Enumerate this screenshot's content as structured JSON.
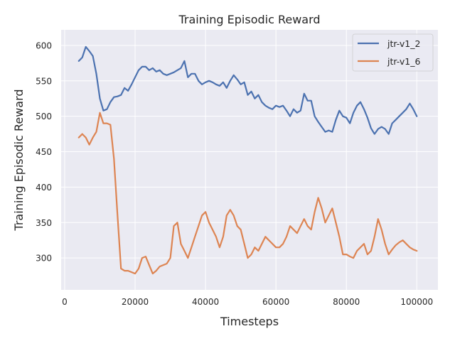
{
  "chart_data": {
    "type": "line",
    "title": "Training Episodic Reward",
    "xlabel": "Timesteps",
    "ylabel": "Training Episodic Reward",
    "xlim": [
      -1000,
      106000
    ],
    "ylim": [
      255,
      622
    ],
    "xticks": [
      0,
      20000,
      40000,
      60000,
      80000,
      100000
    ],
    "xtick_labels": [
      "0",
      "20000",
      "40000",
      "60000",
      "80000",
      "100000"
    ],
    "yticks": [
      300,
      350,
      400,
      450,
      500,
      550,
      600
    ],
    "ytick_labels": [
      "300",
      "350",
      "400",
      "450",
      "500",
      "550",
      "600"
    ],
    "grid": true,
    "legend_position": "top-right",
    "background": "#eaeaf2",
    "series": [
      {
        "name": "jtr-v1_2",
        "color": "#4c72b0",
        "x": [
          4000,
          5000,
          6000,
          7000,
          8000,
          9000,
          10000,
          11000,
          12000,
          13000,
          14000,
          15000,
          16000,
          17000,
          18000,
          19000,
          20000,
          21000,
          22000,
          23000,
          24000,
          25000,
          26000,
          27000,
          28000,
          29000,
          30000,
          31000,
          32000,
          33000,
          34000,
          35000,
          36000,
          37000,
          38000,
          39000,
          40000,
          41000,
          42000,
          43000,
          44000,
          45000,
          46000,
          47000,
          48000,
          49000,
          50000,
          51000,
          52000,
          53000,
          54000,
          55000,
          56000,
          57000,
          58000,
          59000,
          60000,
          61000,
          62000,
          63000,
          64000,
          65000,
          66000,
          67000,
          68000,
          69000,
          70000,
          71000,
          72000,
          73000,
          74000,
          75000,
          76000,
          77000,
          78000,
          79000,
          80000,
          81000,
          82000,
          83000,
          84000,
          85000,
          86000,
          87000,
          88000,
          89000,
          90000,
          91000,
          92000,
          93000,
          94000,
          95000,
          96000,
          97000,
          98000,
          99000,
          100000
        ],
        "y": [
          578,
          583,
          598,
          592,
          585,
          560,
          525,
          508,
          510,
          520,
          527,
          528,
          530,
          540,
          536,
          545,
          555,
          565,
          570,
          570,
          565,
          568,
          563,
          565,
          560,
          558,
          560,
          562,
          565,
          568,
          578,
          555,
          560,
          560,
          550,
          545,
          548,
          550,
          548,
          545,
          543,
          548,
          540,
          550,
          558,
          552,
          545,
          548,
          530,
          535,
          525,
          530,
          520,
          515,
          512,
          510,
          515,
          513,
          515,
          508,
          500,
          510,
          505,
          508,
          532,
          522,
          522,
          500,
          492,
          485,
          478,
          480,
          478,
          495,
          508,
          500,
          498,
          490,
          505,
          515,
          520,
          510,
          498,
          483,
          475,
          482,
          485,
          482,
          475,
          490,
          495,
          500,
          505,
          510,
          518,
          510,
          500
        ]
      },
      {
        "name": "jtr-v1_6",
        "color": "#dd8452",
        "x": [
          4000,
          5000,
          6000,
          7000,
          8000,
          9000,
          10000,
          11000,
          12000,
          13000,
          14000,
          15000,
          16000,
          17000,
          18000,
          19000,
          20000,
          21000,
          22000,
          23000,
          24000,
          25000,
          26000,
          27000,
          28000,
          29000,
          30000,
          31000,
          32000,
          33000,
          34000,
          35000,
          36000,
          37000,
          38000,
          39000,
          40000,
          41000,
          42000,
          43000,
          44000,
          45000,
          46000,
          47000,
          48000,
          49000,
          50000,
          51000,
          52000,
          53000,
          54000,
          55000,
          56000,
          57000,
          58000,
          59000,
          60000,
          61000,
          62000,
          63000,
          64000,
          65000,
          66000,
          67000,
          68000,
          69000,
          70000,
          71000,
          72000,
          73000,
          74000,
          75000,
          76000,
          77000,
          78000,
          79000,
          80000,
          81000,
          82000,
          83000,
          84000,
          85000,
          86000,
          87000,
          88000,
          89000,
          90000,
          91000,
          92000,
          93000,
          94000,
          95000,
          96000,
          97000,
          98000,
          99000,
          100000
        ],
        "y": [
          470,
          475,
          470,
          460,
          470,
          478,
          505,
          490,
          490,
          488,
          440,
          360,
          285,
          282,
          282,
          280,
          278,
          285,
          300,
          302,
          290,
          278,
          282,
          288,
          290,
          292,
          300,
          345,
          350,
          320,
          310,
          300,
          315,
          330,
          345,
          360,
          365,
          350,
          340,
          330,
          315,
          330,
          360,
          368,
          360,
          345,
          340,
          320,
          300,
          305,
          315,
          310,
          320,
          330,
          325,
          320,
          315,
          315,
          320,
          330,
          345,
          340,
          335,
          345,
          355,
          345,
          340,
          365,
          385,
          370,
          350,
          360,
          370,
          350,
          330,
          305,
          305,
          302,
          300,
          310,
          315,
          320,
          305,
          310,
          330,
          355,
          340,
          320,
          305,
          312,
          318,
          322,
          325,
          320,
          315,
          312,
          310
        ]
      }
    ]
  }
}
